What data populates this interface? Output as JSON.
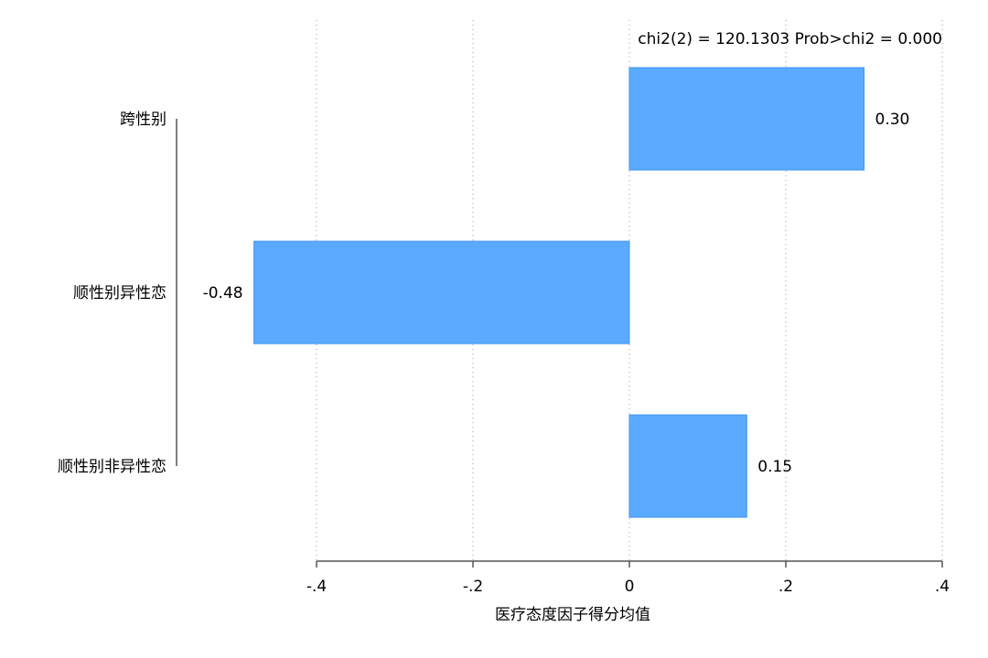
{
  "chart_data": {
    "type": "bar",
    "orientation": "horizontal",
    "annotation": "chi2(2) = 120.1303  Prob>chi2 = 0.000",
    "categories": [
      "跨性别",
      "顺性别异性恋",
      "顺性别非异性恋"
    ],
    "values": [
      0.3,
      -0.48,
      0.15
    ],
    "value_labels": [
      "0.30",
      "-0.48",
      "0.15"
    ],
    "xlabel": "医疗态度因子得分均值",
    "ylabel": "",
    "xlim": [
      -0.4,
      0.4
    ],
    "xticks": [
      -0.4,
      -0.2,
      0,
      0.2,
      0.4
    ],
    "xtick_labels": [
      "-.4",
      "-.2",
      "0",
      ".2",
      ".4"
    ],
    "grid": true,
    "bar_color": "#5aabff",
    "bar_edge_color": "#3f93ee"
  }
}
